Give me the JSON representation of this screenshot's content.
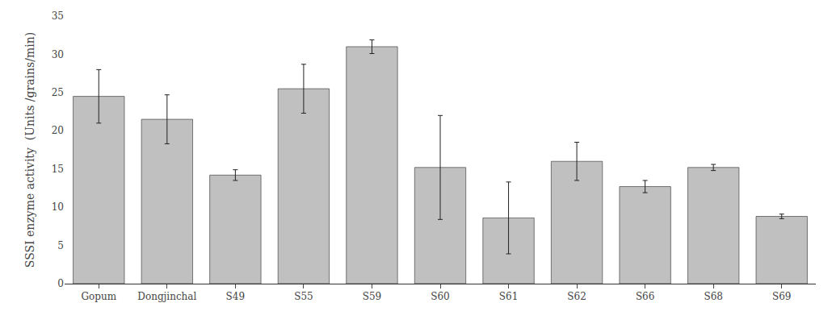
{
  "chart_data": {
    "type": "bar",
    "categories": [
      "Gopum",
      "Dongjinchal",
      "S49",
      "S55",
      "S59",
      "S60",
      "S61",
      "S62",
      "S66",
      "S68",
      "S69"
    ],
    "values": [
      24.5,
      21.5,
      14.2,
      25.5,
      31.0,
      15.2,
      8.6,
      16.0,
      12.7,
      15.2,
      8.8
    ],
    "errors": [
      3.5,
      3.2,
      0.7,
      3.2,
      0.9,
      6.8,
      4.7,
      2.5,
      0.8,
      0.4,
      0.3
    ],
    "color": "#C0C0C0",
    "ylabel": "SSSI enzyme activity  (Units /grains/min)",
    "ylim": [
      0,
      35
    ],
    "yticks": [
      0,
      5,
      10,
      15,
      20,
      25,
      30,
      35
    ],
    "grid": false
  }
}
